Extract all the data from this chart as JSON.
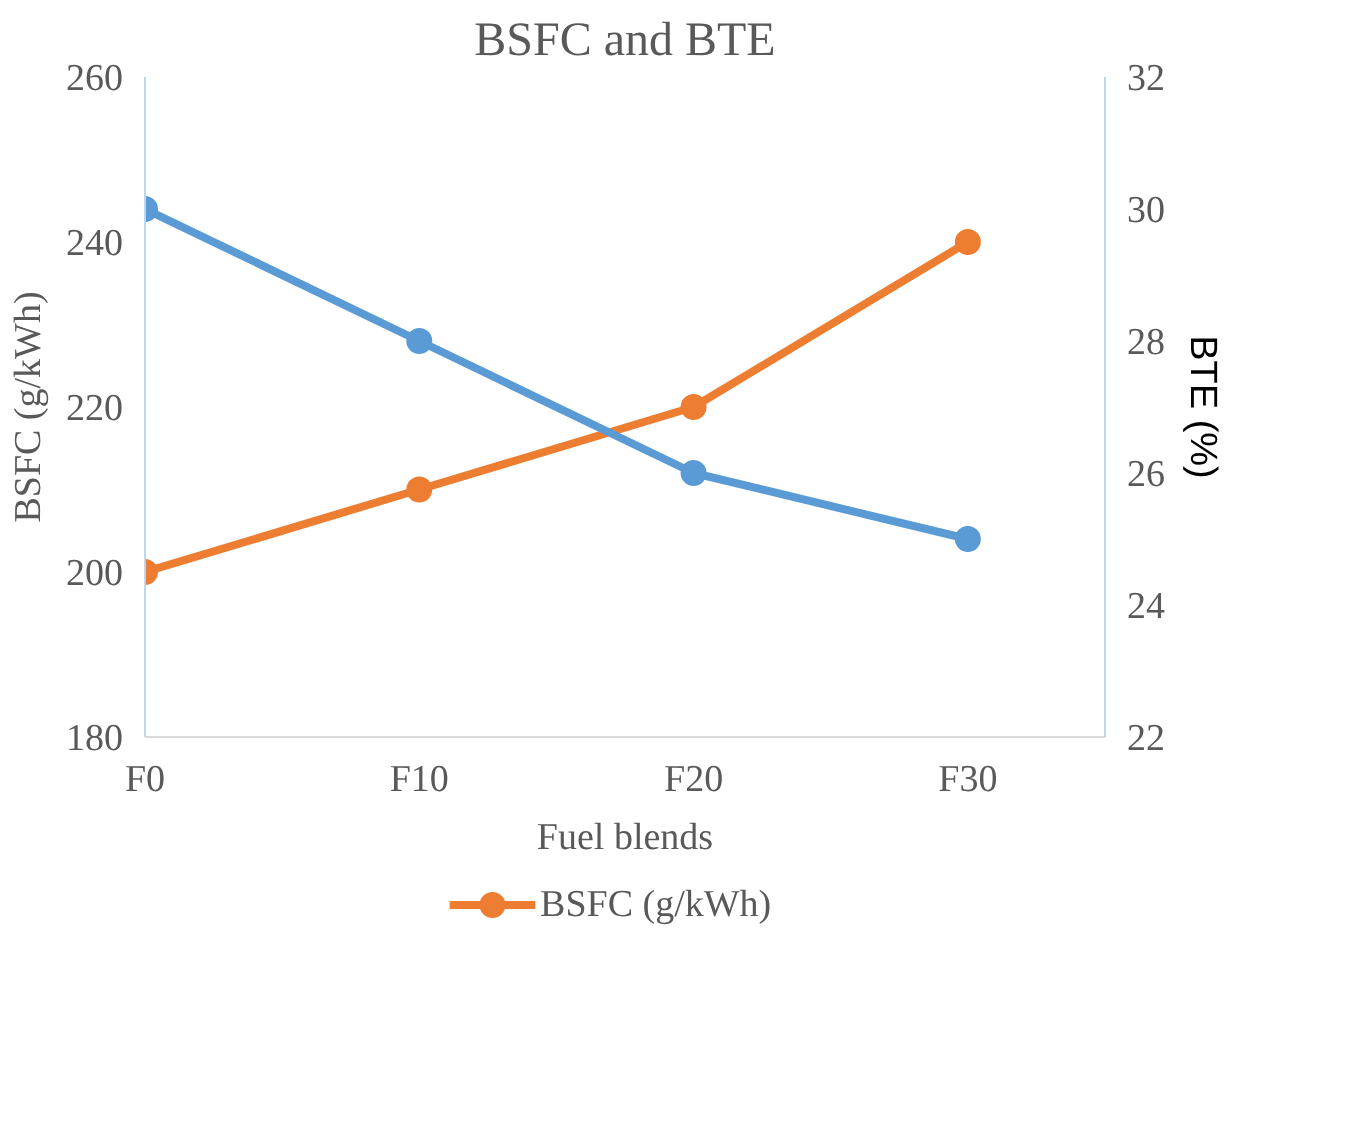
{
  "chart_data": {
    "type": "line",
    "title": "BSFC and BTE",
    "xlabel": "Fuel blends",
    "ylabel": "BSFC (g/kWh)",
    "y2label": "BTE (%)",
    "categories": [
      "F0",
      "F10",
      "F20",
      "F30"
    ],
    "series": [
      {
        "name": "BSFC (g/kWh)",
        "color": "#ed7d31",
        "values": [
          200,
          210,
          220,
          240
        ]
      },
      {
        "color": "#5b9bd5",
        "values": [
          30,
          28,
          26,
          25
        ],
        "axis": "y2"
      }
    ],
    "ylim": [
      180,
      260
    ],
    "yticks": [
      180,
      200,
      220,
      240,
      260
    ],
    "y2lim": [
      22,
      32
    ],
    "y2ticks": [
      22,
      24,
      26,
      28,
      30,
      32
    ],
    "grid": false,
    "legend": "bottom",
    "marker": "circle",
    "line_style": "solid"
  }
}
